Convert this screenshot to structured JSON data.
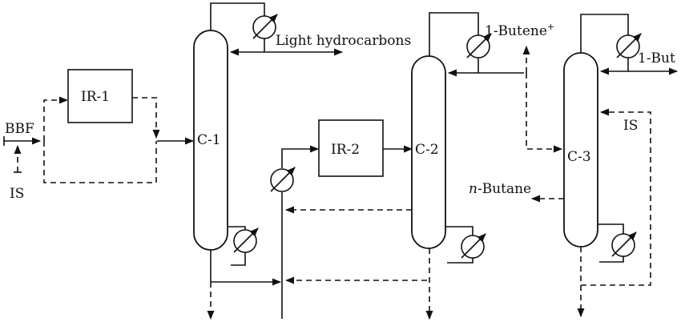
{
  "units": {
    "ir1": "IR-1",
    "ir2": "IR-2",
    "c1": "C-1",
    "c2": "C-2",
    "c3": "C-3"
  },
  "streams": {
    "feed": "BBF",
    "is_left": "IS",
    "is_right": "IS",
    "light": "Light hydrocarbons",
    "butene_top": "1-Butene",
    "butene_top_sup": "+",
    "butane_prefix": "n",
    "butane_rest": "-Butane",
    "butene_right": "1-But"
  }
}
